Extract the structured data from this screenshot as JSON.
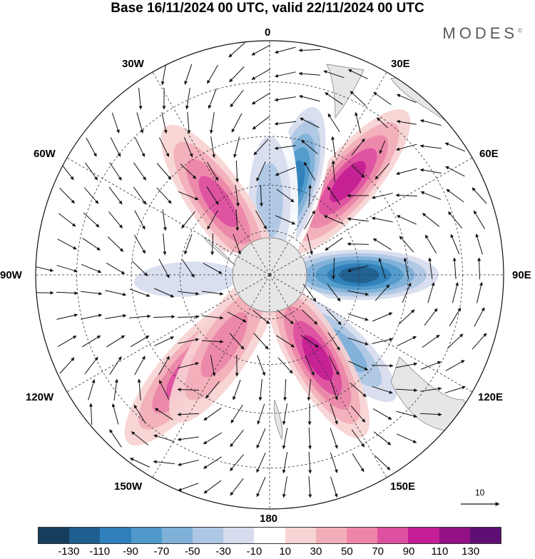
{
  "title": "Base 16/11/2024 00 UTC, valid 22/11/2024 00 UTC",
  "brand": "MODES",
  "brand_mark": "©",
  "longitude_labels": [
    "0",
    "30E",
    "60E",
    "90E",
    "120E",
    "150E",
    "180",
    "150W",
    "120W",
    "90W",
    "60W",
    "30W"
  ],
  "reference_vector": {
    "label": "10",
    "magnitude": 10
  },
  "colorbar": {
    "colors": [
      "#163d5c",
      "#1f5f8f",
      "#2f7fba",
      "#4f9acb",
      "#7eb0d8",
      "#aec7e4",
      "#d7dcee",
      "#ffffff",
      "#f7d3d3",
      "#f2aeb8",
      "#ec85a8",
      "#dd4f9f",
      "#c31e95",
      "#931184",
      "#5e0f73"
    ],
    "tick_labels": [
      "-130",
      "-110",
      "-90",
      "-70",
      "-50",
      "-30",
      "-10",
      "10",
      "30",
      "50",
      "70",
      "90",
      "110",
      "130"
    ]
  },
  "map": {
    "projection": "south-polar-stereographic",
    "anomaly_centers": [
      {
        "lon": 90,
        "lat": -60,
        "value": -135
      },
      {
        "lon": 135,
        "lat": -55,
        "value": -70
      },
      {
        "lon": 150,
        "lat": -58,
        "value": 90
      },
      {
        "lon": 40,
        "lat": -50,
        "value": 90
      },
      {
        "lon": 15,
        "lat": -58,
        "value": -100
      },
      {
        "lon": 0,
        "lat": -65,
        "value": -50
      },
      {
        "lon": 325,
        "lat": -60,
        "value": 60
      },
      {
        "lon": 220,
        "lat": -48,
        "value": 60
      },
      {
        "lon": 267,
        "lat": -62,
        "value": -35
      },
      {
        "lon": 213,
        "lat": -62,
        "value": 50
      }
    ]
  }
}
